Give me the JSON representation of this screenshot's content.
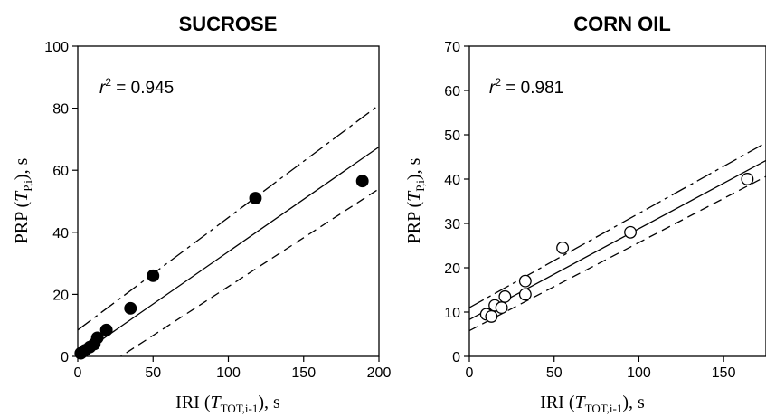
{
  "panels": [
    {
      "title": "SUCROSE",
      "r2_label": "r",
      "r2_sup": "2",
      "r2_value": " = 0.945",
      "x_label": {
        "prefix": "IRI (",
        "var": "T",
        "sub": "TOT,i-1",
        "suffix": "), s"
      },
      "y_label": {
        "prefix": "PRP (",
        "var": "T",
        "sub": "P,i",
        "suffix": "), s"
      }
    },
    {
      "title": "CORN OIL",
      "r2_label": "r",
      "r2_sup": "2",
      "r2_value": " = 0.981",
      "x_label": {
        "prefix": "IRI (",
        "var": "T",
        "sub": "TOT,i-1",
        "suffix": "), s"
      },
      "y_label": {
        "prefix": "PRP (",
        "var": "T",
        "sub": "P,i",
        "suffix": "), s"
      }
    }
  ],
  "chart_data": [
    {
      "type": "scatter",
      "title": "SUCROSE",
      "xlabel": "IRI (T TOT,i-1), s",
      "ylabel": "PRP (T P,i), s",
      "xlim": [
        0,
        200
      ],
      "ylim": [
        0,
        100
      ],
      "xticks": [
        0,
        50,
        100,
        150,
        200
      ],
      "yticks": [
        0,
        20,
        40,
        60,
        80,
        100
      ],
      "marker": "filled-circle",
      "points": [
        [
          2,
          1
        ],
        [
          5,
          2
        ],
        [
          8,
          3
        ],
        [
          11,
          4
        ],
        [
          13,
          6
        ],
        [
          19,
          8.5
        ],
        [
          35,
          15.5
        ],
        [
          50,
          26
        ],
        [
          118,
          51
        ],
        [
          189,
          56.5
        ]
      ],
      "fit_line": [
        [
          0,
          0
        ],
        [
          200,
          67.5
        ]
      ],
      "upper_ci": [
        [
          0,
          8.5
        ],
        [
          200,
          81
        ]
      ],
      "lower_ci": [
        [
          0,
          -9
        ],
        [
          200,
          54
        ]
      ],
      "annotation": "r2 = 0.945",
      "grid": false
    },
    {
      "type": "scatter",
      "title": "CORN OIL",
      "xlabel": "IRI (T TOT,i-1), s",
      "ylabel": "PRP (T P,i), s",
      "xlim": [
        0,
        175
      ],
      "ylim": [
        0,
        70
      ],
      "xticks": [
        0,
        50,
        100,
        150
      ],
      "yticks": [
        0,
        10,
        20,
        30,
        40,
        50,
        60,
        70
      ],
      "marker": "open-circle",
      "points": [
        [
          10,
          9.5
        ],
        [
          13,
          9
        ],
        [
          15,
          11.5
        ],
        [
          19,
          11
        ],
        [
          21,
          13.5
        ],
        [
          33,
          14
        ],
        [
          33,
          17
        ],
        [
          55,
          24.5
        ],
        [
          95,
          28
        ],
        [
          164,
          40
        ]
      ],
      "fit_line": [
        [
          0,
          8.3
        ],
        [
          175,
          44.2
        ]
      ],
      "upper_ci": [
        [
          0,
          11
        ],
        [
          175,
          48.2
        ]
      ],
      "lower_ci": [
        [
          0,
          5.8
        ],
        [
          175,
          40.6
        ]
      ],
      "annotation": "r2 = 0.981",
      "grid": false
    }
  ]
}
